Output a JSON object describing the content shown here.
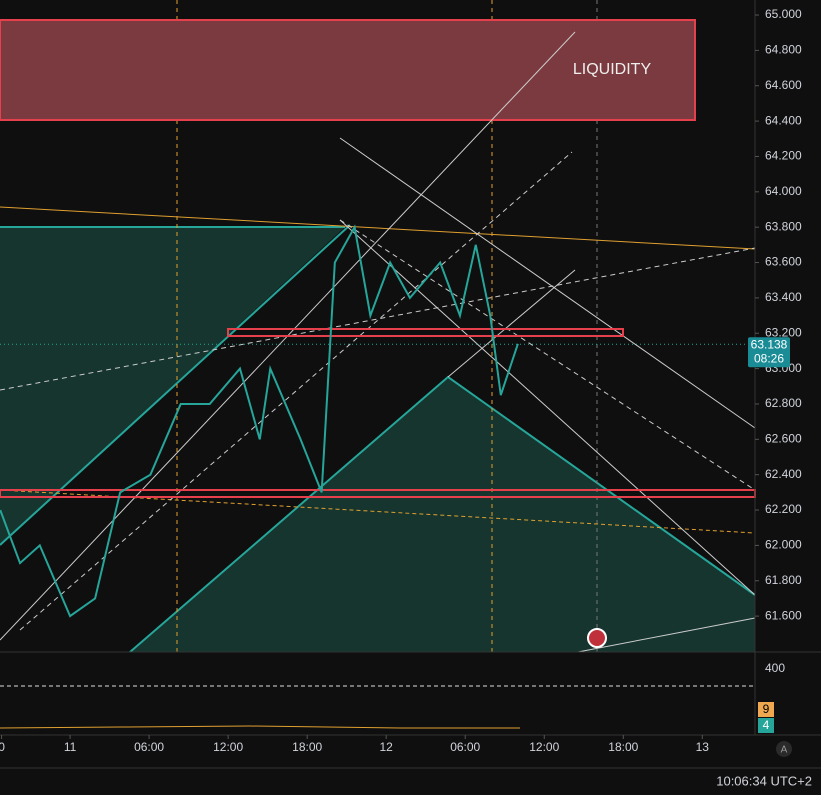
{
  "chart_data": {
    "type": "line",
    "x": [
      -5.3,
      -3.8,
      -2.3,
      0,
      1.9,
      3.8,
      6.1,
      8.4,
      10.6,
      12.9,
      14.4,
      15.2,
      17.5,
      19.1,
      20.1,
      21.6,
      22.8,
      24.3,
      25.8,
      28.1,
      29.6,
      30.8,
      31.9,
      32.7,
      34.0
    ],
    "series": [
      {
        "color": "#26a69a",
        "values": [
          62.2,
          61.9,
          62.0,
          61.6,
          61.7,
          62.3,
          62.4,
          62.8,
          62.8,
          63.0,
          62.6,
          63.0,
          62.6,
          62.3,
          63.6,
          63.8,
          63.3,
          63.6,
          63.4,
          63.6,
          63.3,
          63.7,
          63.3,
          62.85,
          63.14
        ]
      }
    ],
    "xlim": [
      -5.32,
      52.0
    ],
    "xticks": [
      {
        "value": -5.2,
        "label": "0"
      },
      {
        "value": 0,
        "label": "11"
      },
      {
        "value": 6,
        "label": "06:00"
      },
      {
        "value": 12,
        "label": "12:00"
      },
      {
        "value": 18,
        "label": "18:00"
      },
      {
        "value": 24,
        "label": "12"
      },
      {
        "value": 30,
        "label": "06:00"
      },
      {
        "value": 36,
        "label": "12:00"
      },
      {
        "value": 42,
        "label": "18:00"
      },
      {
        "value": 48,
        "label": "13"
      }
    ],
    "ylim": [
      61.397,
      65.085
    ],
    "yticks": [
      {
        "value": 61.6,
        "label": "61.600"
      },
      {
        "value": 61.8,
        "label": "61.800"
      },
      {
        "value": 62.0,
        "label": "62.000"
      },
      {
        "value": 62.2,
        "label": "62.200"
      },
      {
        "value": 62.4,
        "label": "62.400"
      },
      {
        "value": 62.6,
        "label": "62.600"
      },
      {
        "value": 62.8,
        "label": "62.800"
      },
      {
        "value": 63.0,
        "label": "63.000"
      },
      {
        "value": 63.2,
        "label": "63.200"
      },
      {
        "value": 63.4,
        "label": "63.400"
      },
      {
        "value": 63.6,
        "label": "63.600"
      },
      {
        "value": 63.8,
        "label": "63.800"
      },
      {
        "value": 64.0,
        "label": "64.000"
      },
      {
        "value": 64.2,
        "label": "64.200"
      },
      {
        "value": 64.4,
        "label": "64.400"
      },
      {
        "value": 64.6,
        "label": "64.600"
      },
      {
        "value": 64.8,
        "label": "64.800"
      },
      {
        "value": 65.0,
        "label": "65.000"
      }
    ],
    "annotation": "LIQUIDITY",
    "last_price": {
      "value": 63.138,
      "label": "63.138"
    },
    "countdown": "08:26",
    "volume_tick": "400",
    "indicator_values": [
      "9",
      "4"
    ],
    "auto_button": "A",
    "clock": "10:06:34 UTC+2"
  }
}
